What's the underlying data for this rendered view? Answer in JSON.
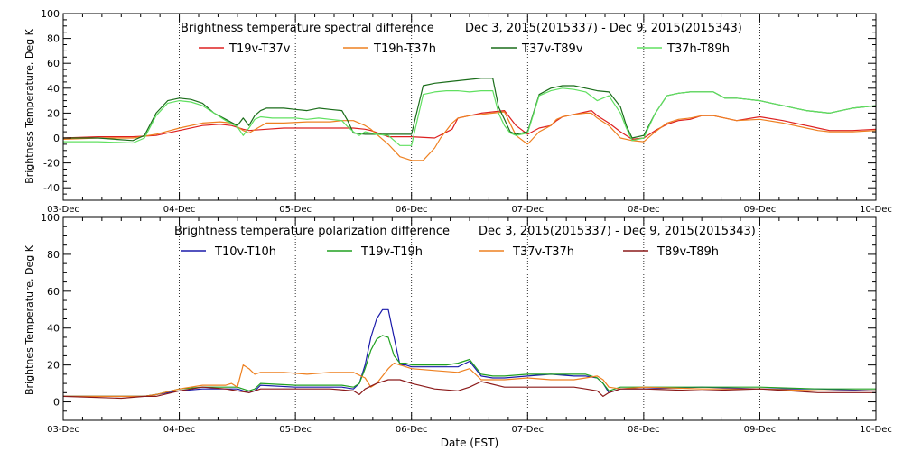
{
  "figure": {
    "xlabel": "Date (EST)"
  },
  "chart_data": [
    {
      "type": "line",
      "title": "Brightness temperature spectral difference",
      "period": "Dec  3, 2015(2015337) - Dec  9, 2015(2015343)",
      "ylabel": "Brightness Temperature, Deg K",
      "xlabel": "",
      "xlim": [
        0,
        7
      ],
      "ylim": [
        -50,
        100
      ],
      "yticks": [
        -40,
        -20,
        0,
        20,
        40,
        60,
        80,
        100
      ],
      "xtick_labels": [
        "03-Dec",
        "04-Dec",
        "05-Dec",
        "06-Dec",
        "07-Dec",
        "08-Dec",
        "09-Dec",
        "10-Dec"
      ],
      "x_unit": "days since 03-Dec 2015 00:00 EST",
      "grid": "dotted vertical at day boundaries",
      "legend": "top, inside",
      "series": [
        {
          "name": "T19v-T37v",
          "color": "#dd2020",
          "x": [
            0,
            0.3,
            0.6,
            0.8,
            1.0,
            1.2,
            1.35,
            1.45,
            1.55,
            1.6,
            1.75,
            1.9,
            2.1,
            2.3,
            2.5,
            2.6,
            2.65,
            2.8,
            3.0,
            3.2,
            3.35,
            3.4,
            3.5,
            3.6,
            3.7,
            3.8,
            3.9,
            4.0,
            4.1,
            4.2,
            4.25,
            4.3,
            4.4,
            4.5,
            4.55,
            4.6,
            4.7,
            4.8,
            4.9,
            5.0,
            5.1,
            5.2,
            5.3,
            5.4,
            5.5,
            5.6,
            5.8,
            6.0,
            6.2,
            6.4,
            6.5,
            6.6,
            6.8,
            7.0
          ],
          "y": [
            0,
            1,
            1,
            2,
            6,
            10,
            11,
            10,
            7,
            6,
            7,
            8,
            8,
            8,
            8,
            7,
            6,
            1,
            1,
            0,
            7,
            16,
            18,
            20,
            21,
            22,
            10,
            3,
            8,
            10,
            14,
            17,
            19,
            21,
            22,
            18,
            12,
            5,
            -1,
            0,
            6,
            11,
            14,
            15,
            18,
            18,
            14,
            17,
            14,
            10,
            8,
            6,
            6,
            7
          ]
        },
        {
          "name": "T19h-T37h",
          "color": "#ee8020",
          "x": [
            0,
            0.3,
            0.6,
            0.8,
            1.0,
            1.2,
            1.35,
            1.45,
            1.55,
            1.6,
            1.75,
            1.9,
            2.1,
            2.3,
            2.4,
            2.5,
            2.6,
            2.65,
            2.8,
            2.9,
            3.0,
            3.1,
            3.2,
            3.25,
            3.35,
            3.4,
            3.5,
            3.6,
            3.7,
            3.8,
            3.9,
            4.0,
            4.1,
            4.2,
            4.25,
            4.3,
            4.4,
            4.5,
            4.55,
            4.6,
            4.7,
            4.8,
            4.9,
            5.0,
            5.1,
            5.2,
            5.3,
            5.4,
            5.5,
            5.6,
            5.8,
            6.0,
            6.2,
            6.4,
            6.5,
            6.6,
            6.8,
            7.0
          ],
          "y": [
            -1,
            0,
            0,
            3,
            8,
            12,
            13,
            12,
            6,
            4,
            12,
            12,
            13,
            13,
            14,
            14,
            10,
            7,
            -5,
            -15,
            -18,
            -18,
            -8,
            0,
            12,
            16,
            18,
            19,
            20,
            21,
            2,
            -5,
            5,
            10,
            15,
            17,
            19,
            20,
            20,
            16,
            10,
            0,
            -2,
            -3,
            5,
            12,
            15,
            16,
            18,
            18,
            14,
            15,
            12,
            8,
            6,
            5,
            5,
            6
          ]
        },
        {
          "name": "T37v-T89v",
          "color": "#1a6d1a",
          "x": [
            0,
            0.3,
            0.6,
            0.7,
            0.8,
            0.9,
            1.0,
            1.1,
            1.2,
            1.3,
            1.4,
            1.5,
            1.55,
            1.6,
            1.65,
            1.7,
            1.75,
            1.8,
            1.9,
            2.0,
            2.1,
            2.2,
            2.3,
            2.4,
            2.45,
            2.5,
            2.6,
            2.8,
            2.9,
            3.0,
            3.1,
            3.2,
            3.3,
            3.4,
            3.5,
            3.6,
            3.7,
            3.75,
            3.8,
            3.85,
            3.9,
            4.0,
            4.1,
            4.2,
            4.3,
            4.4,
            4.5,
            4.6,
            4.7,
            4.8,
            4.85,
            4.9,
            5.0,
            5.1,
            5.2,
            5.3,
            5.4,
            5.5,
            5.6,
            5.7,
            5.8,
            5.9,
            6.0,
            6.1,
            6.2,
            6.3,
            6.4,
            6.5,
            6.6,
            6.7,
            6.8,
            6.9,
            7.0
          ],
          "y": [
            0,
            0,
            -2,
            2,
            20,
            30,
            32,
            31,
            28,
            20,
            15,
            10,
            16,
            10,
            18,
            22,
            24,
            24,
            24,
            23,
            22,
            24,
            23,
            22,
            14,
            4,
            3,
            3,
            3,
            3,
            42,
            44,
            45,
            46,
            47,
            48,
            48,
            25,
            15,
            5,
            3,
            5,
            35,
            40,
            42,
            42,
            40,
            38,
            37,
            25,
            10,
            0,
            2,
            20,
            34,
            36,
            37,
            37,
            37,
            32,
            32,
            31,
            30,
            28,
            26,
            24,
            22,
            21,
            20,
            22,
            24,
            25,
            26
          ]
        },
        {
          "name": "T37h-T89h",
          "color": "#60e060",
          "x": [
            0,
            0.3,
            0.6,
            0.7,
            0.8,
            0.9,
            1.0,
            1.1,
            1.2,
            1.3,
            1.4,
            1.5,
            1.55,
            1.6,
            1.65,
            1.7,
            1.8,
            1.9,
            2.0,
            2.1,
            2.2,
            2.3,
            2.4,
            2.45,
            2.5,
            2.55,
            2.6,
            2.7,
            2.8,
            2.9,
            3.0,
            3.1,
            3.2,
            3.3,
            3.4,
            3.5,
            3.6,
            3.7,
            3.75,
            3.8,
            3.85,
            3.9,
            4.0,
            4.1,
            4.2,
            4.3,
            4.4,
            4.5,
            4.6,
            4.7,
            4.8,
            4.85,
            4.9,
            5.0,
            5.1,
            5.2,
            5.3,
            5.4,
            5.5,
            5.6,
            5.7,
            5.8,
            5.9,
            6.0,
            6.1,
            6.2,
            6.3,
            6.4,
            6.5,
            6.6,
            6.7,
            6.8,
            6.9,
            7.0
          ],
          "y": [
            -3,
            -3,
            -4,
            0,
            18,
            28,
            30,
            29,
            26,
            20,
            14,
            9,
            2,
            8,
            15,
            17,
            16,
            16,
            16,
            15,
            16,
            15,
            14,
            9,
            5,
            2,
            5,
            3,
            2,
            -6,
            -6,
            35,
            37,
            38,
            38,
            37,
            38,
            38,
            20,
            10,
            4,
            2,
            4,
            34,
            38,
            40,
            39,
            37,
            30,
            34,
            20,
            8,
            -2,
            0,
            20,
            34,
            36,
            37,
            37,
            37,
            32,
            32,
            31,
            30,
            28,
            26,
            24,
            22,
            21,
            20,
            22,
            24,
            25,
            26
          ]
        }
      ]
    },
    {
      "type": "line",
      "title": "Brightness temperature polarization difference",
      "period": "Dec  3, 2015(2015337) - Dec  9, 2015(2015343)",
      "ylabel": "Brightnes Temperature, Deg K",
      "xlabel": "Date (EST)",
      "xlim": [
        0,
        7
      ],
      "ylim": [
        -10,
        100
      ],
      "yticks": [
        0,
        20,
        40,
        60,
        80,
        100
      ],
      "xtick_labels": [
        "03-Dec",
        "04-Dec",
        "05-Dec",
        "06-Dec",
        "07-Dec",
        "08-Dec",
        "09-Dec",
        "10-Dec"
      ],
      "x_unit": "days since 03-Dec 2015 00:00 EST",
      "grid": "dotted vertical at day boundaries",
      "legend": "top, inside",
      "series": [
        {
          "name": "T10v-T10h",
          "color": "#1a1aaa",
          "x": [
            0,
            0.5,
            0.7,
            0.8,
            1.0,
            1.2,
            1.4,
            1.5,
            1.6,
            1.65,
            1.7,
            2.0,
            2.2,
            2.4,
            2.5,
            2.55,
            2.6,
            2.65,
            2.7,
            2.75,
            2.8,
            2.85,
            2.9,
            2.95,
            3.0,
            3.1,
            3.2,
            3.3,
            3.4,
            3.5,
            3.6,
            3.7,
            3.8,
            4.0,
            4.2,
            4.4,
            4.5,
            4.6,
            4.65,
            4.7,
            4.8,
            5.0,
            5.5,
            6.0,
            6.5,
            7.0
          ],
          "y": [
            3,
            3,
            3,
            4,
            6,
            7,
            7,
            7,
            5,
            6,
            9,
            8,
            8,
            8,
            7,
            10,
            20,
            35,
            45,
            50,
            50,
            35,
            20,
            20,
            19,
            19,
            19,
            19,
            19,
            22,
            14,
            13,
            13,
            14,
            15,
            14,
            14,
            13,
            10,
            5,
            7,
            7,
            8,
            7,
            7,
            6
          ]
        },
        {
          "name": "T19v-T19h",
          "color": "#20a020",
          "x": [
            0,
            0.5,
            0.7,
            0.8,
            1.0,
            1.2,
            1.4,
            1.5,
            1.6,
            1.65,
            1.7,
            2.0,
            2.2,
            2.4,
            2.5,
            2.55,
            2.6,
            2.65,
            2.7,
            2.75,
            2.8,
            2.85,
            2.9,
            2.95,
            3.0,
            3.1,
            3.2,
            3.3,
            3.4,
            3.5,
            3.6,
            3.7,
            3.8,
            4.0,
            4.2,
            4.4,
            4.5,
            4.6,
            4.65,
            4.7,
            4.8,
            5.0,
            5.5,
            6.0,
            6.5,
            7.0
          ],
          "y": [
            3,
            3,
            3,
            4,
            7,
            8,
            8,
            8,
            6,
            7,
            10,
            9,
            9,
            9,
            8,
            10,
            18,
            28,
            34,
            36,
            35,
            25,
            21,
            21,
            20,
            20,
            20,
            20,
            21,
            23,
            15,
            14,
            14,
            15,
            15,
            15,
            15,
            13,
            10,
            6,
            8,
            8,
            8,
            8,
            7,
            7
          ]
        },
        {
          "name": "T37v-T37h",
          "color": "#ee8020",
          "x": [
            0,
            0.5,
            0.7,
            0.8,
            1.0,
            1.2,
            1.4,
            1.45,
            1.5,
            1.55,
            1.6,
            1.65,
            1.7,
            1.9,
            2.1,
            2.3,
            2.5,
            2.6,
            2.65,
            2.7,
            2.75,
            2.8,
            2.85,
            2.9,
            3.0,
            3.2,
            3.4,
            3.5,
            3.6,
            3.8,
            4.0,
            4.2,
            4.4,
            4.5,
            4.6,
            4.65,
            4.7,
            4.8,
            5.0,
            5.5,
            6.0,
            6.5,
            7.0
          ],
          "y": [
            3,
            3,
            3,
            4,
            7,
            9,
            9,
            10,
            8,
            20,
            18,
            15,
            16,
            16,
            15,
            16,
            16,
            13,
            8,
            10,
            14,
            18,
            21,
            20,
            18,
            17,
            16,
            18,
            12,
            12,
            13,
            12,
            12,
            13,
            14,
            12,
            8,
            7,
            8,
            7,
            7,
            6,
            6
          ]
        },
        {
          "name": "T89v-T89h",
          "color": "#8b1a1a",
          "x": [
            0,
            0.5,
            0.7,
            0.8,
            1.0,
            1.2,
            1.4,
            1.5,
            1.6,
            1.7,
            1.9,
            2.1,
            2.3,
            2.5,
            2.55,
            2.6,
            2.7,
            2.8,
            2.9,
            3.0,
            3.2,
            3.4,
            3.5,
            3.6,
            3.8,
            4.0,
            4.2,
            4.4,
            4.5,
            4.6,
            4.65,
            4.7,
            4.8,
            5.0,
            5.5,
            6.0,
            6.5,
            7.0
          ],
          "y": [
            3,
            2,
            3,
            3,
            6,
            8,
            7,
            6,
            5,
            7,
            7,
            7,
            7,
            6,
            4,
            7,
            10,
            12,
            12,
            10,
            7,
            6,
            8,
            11,
            8,
            8,
            8,
            8,
            7,
            6,
            3,
            5,
            7,
            7,
            6,
            7,
            5,
            5
          ]
        }
      ]
    }
  ]
}
